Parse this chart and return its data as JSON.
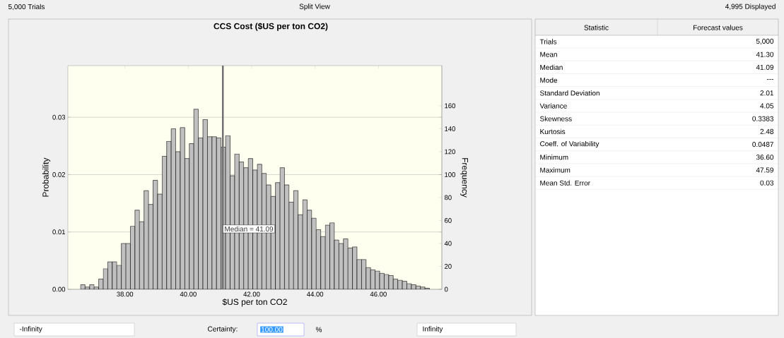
{
  "chart_data": [
    {
      "type": "histogram",
      "title": "CCS Cost ($US per ton CO2)",
      "xlabel": "$US per ton CO2",
      "ylabel": "Probability",
      "y2label": "Frequency",
      "bins": [
        36.6,
        36.743,
        36.886,
        37.029,
        37.172,
        37.315,
        37.458,
        37.601,
        37.744,
        37.887,
        38.03,
        38.173,
        38.316,
        38.459,
        38.602,
        38.745,
        38.888,
        39.031,
        39.174,
        39.317,
        39.46,
        39.603,
        39.746,
        39.889,
        40.032,
        40.175,
        40.318,
        40.461,
        40.604,
        40.747,
        40.89,
        41.033,
        41.176,
        41.319,
        41.462,
        41.605,
        41.748,
        41.891,
        42.034,
        42.177,
        42.32,
        42.463,
        42.606,
        42.749,
        42.892,
        43.035,
        43.178,
        43.321,
        43.464,
        43.607,
        43.75,
        43.893,
        44.036,
        44.179,
        44.322,
        44.465,
        44.608,
        44.751,
        44.894,
        45.037,
        45.18,
        45.323,
        45.466,
        45.609,
        45.752,
        45.895,
        46.038,
        46.181,
        46.324,
        46.467,
        46.61,
        46.753,
        46.896,
        47.039,
        47.182,
        47.325,
        47.468,
        47.611
      ],
      "series": [
        {
          "color": "#c0c0c0",
          "axis": "y2",
          "values": [
            4,
            2,
            4,
            2,
            9,
            18,
            24,
            24,
            21,
            40,
            40,
            55,
            69,
            59,
            86,
            74,
            95,
            83,
            116,
            129,
            140,
            120,
            141,
            114,
            127,
            157,
            132,
            148,
            133,
            133,
            132,
            124,
            134,
            99,
            118,
            111,
            106,
            114,
            104,
            109,
            101,
            91,
            81,
            93,
            106,
            91,
            76,
            86,
            65,
            78,
            69,
            62,
            52,
            46,
            56,
            58,
            43,
            40,
            44,
            36,
            37,
            26,
            26,
            19,
            17,
            16,
            14,
            13,
            12,
            9,
            8,
            7,
            5,
            4,
            3,
            2,
            1
          ]
        }
      ],
      "xlim": [
        36.2,
        48.0
      ],
      "ylim": [
        0,
        0.039
      ],
      "y2lim": [
        0,
        195
      ],
      "xticks": [
        {
          "value": 38,
          "label": "38.00"
        },
        {
          "value": 40,
          "label": "40.00"
        },
        {
          "value": 42,
          "label": "42.00"
        },
        {
          "value": 44,
          "label": "44.00"
        },
        {
          "value": 46,
          "label": "46.00"
        }
      ],
      "yticks": [
        {
          "value": 0,
          "label": "0.00"
        },
        0.01,
        0.02,
        0.03
      ],
      "y2ticks": [
        0,
        20,
        40,
        60,
        80,
        100,
        120,
        140,
        160
      ],
      "grid": "y",
      "ref_lines": [
        {
          "axis": "x",
          "value": 41.09,
          "label": "Median = 41.09",
          "color": "#707070"
        }
      ],
      "annotations": [
        "5,000 Trials",
        "Split View",
        "4,995 Displayed",
        "-Infinity",
        "Certainty:",
        "100.00",
        "%",
        "Infinity"
      ]
    },
    {
      "type": "other",
      "categories": [
        "Trials",
        "Mean",
        "Median",
        "Mode",
        "Standard Deviation",
        "Variance",
        "Skewness",
        "Kurtosis",
        "Coeff. of Variability",
        "Minimum",
        "Maximum",
        "Mean Std. Error"
      ],
      "value_labels": [
        "5,000",
        "41.30",
        "41.09",
        "---",
        "2.01",
        "4.05",
        "0.3383",
        "2.48",
        "0.0487",
        "36.60",
        "47.59",
        "0.03"
      ],
      "annotations": [
        "Statistic",
        "Forecast values"
      ]
    }
  ]
}
